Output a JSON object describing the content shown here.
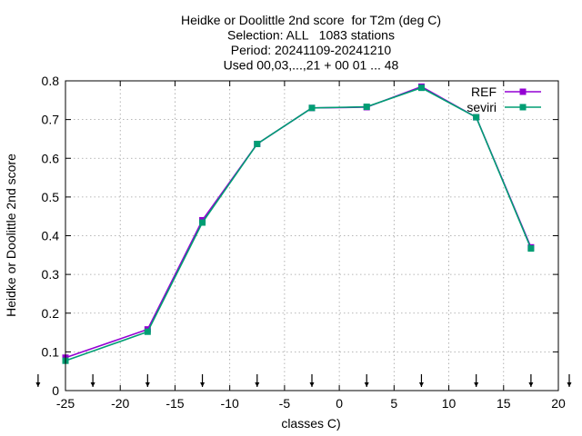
{
  "chart_data": {
    "type": "line",
    "title_lines": [
      "Heidke or Doolittle 2nd score  for T2m (deg C)",
      "Selection: ALL   1083 stations",
      "Period: 20241109-20241210",
      "Used 00,03,...,21 + 00 01 ... 48"
    ],
    "xlabel": "classes C)",
    "ylabel": "Heidke or Doolittle 2nd score",
    "xlim": [
      -25,
      20
    ],
    "ylim": [
      0,
      0.8
    ],
    "xticks": [
      -25,
      -20,
      -15,
      -10,
      -5,
      0,
      5,
      10,
      15,
      20
    ],
    "xtick_labels": [
      "-25",
      "-20",
      "-15",
      "-10",
      "-5",
      "0",
      "5",
      "10",
      "15",
      "20"
    ],
    "yticks": [
      0,
      0.1,
      0.2,
      0.3,
      0.4,
      0.5,
      0.6,
      0.7,
      0.8
    ],
    "ytick_labels": [
      "0",
      "0.1",
      "0.2",
      "0.3",
      "0.4",
      "0.5",
      "0.6",
      "0.7",
      "0.8"
    ],
    "grid": true,
    "legend_position": "top-right",
    "class_boundary_arrows_x": [
      -27.5,
      -22.5,
      -17.5,
      -12.5,
      -7.5,
      -2.5,
      2.5,
      7.5,
      12.5,
      17.5,
      22.5
    ],
    "series": [
      {
        "name": "REF",
        "color": "#9400d3",
        "x": [
          -25,
          -17.5,
          -12.5,
          -7.5,
          -2.5,
          2.5,
          7.5,
          12.5,
          17.5
        ],
        "y": [
          0.085,
          0.158,
          0.44,
          0.637,
          0.73,
          0.732,
          0.785,
          0.706,
          0.37
        ]
      },
      {
        "name": "seviri",
        "color": "#009e73",
        "x": [
          -25,
          -17.5,
          -12.5,
          -7.5,
          -2.5,
          2.5,
          7.5,
          12.5,
          17.5
        ],
        "y": [
          0.077,
          0.152,
          0.434,
          0.637,
          0.73,
          0.733,
          0.782,
          0.706,
          0.367
        ]
      }
    ]
  }
}
